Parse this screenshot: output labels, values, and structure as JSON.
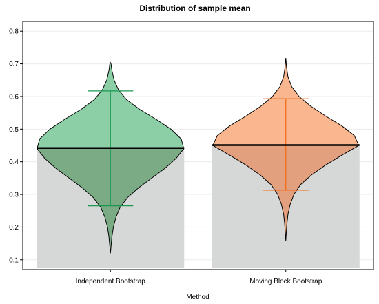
{
  "chart_data": {
    "type": "violin",
    "title": "Distribution of sample mean",
    "xlabel": "Method",
    "ylabel": "",
    "ylim": [
      0.07,
      0.83
    ],
    "yticks": [
      "0.1",
      "0.2",
      "0.3",
      "0.4",
      "0.5",
      "0.6",
      "0.7",
      "0.8"
    ],
    "grid": true,
    "categories": [
      "Independent Bootstrap",
      "Moving Block Bootstrap"
    ],
    "series": [
      {
        "category": "Independent Bootstrap",
        "mean": 0.442,
        "interval": [
          0.265,
          0.617
        ],
        "min": 0.12,
        "max": 0.704,
        "fill_color": "#8ccfa6",
        "lower_fill_color": "#7aab84",
        "line_color": "#1a9850",
        "density": [
          [
            0.12,
            0.0
          ],
          [
            0.14,
            0.008
          ],
          [
            0.17,
            0.02
          ],
          [
            0.2,
            0.04
          ],
          [
            0.23,
            0.075
          ],
          [
            0.26,
            0.13
          ],
          [
            0.29,
            0.23
          ],
          [
            0.32,
            0.38
          ],
          [
            0.35,
            0.56
          ],
          [
            0.38,
            0.74
          ],
          [
            0.41,
            0.89
          ],
          [
            0.44,
            0.995
          ],
          [
            0.47,
            0.96
          ],
          [
            0.5,
            0.82
          ],
          [
            0.53,
            0.62
          ],
          [
            0.56,
            0.4
          ],
          [
            0.59,
            0.22
          ],
          [
            0.62,
            0.11
          ],
          [
            0.65,
            0.05
          ],
          [
            0.68,
            0.02
          ],
          [
            0.7,
            0.008
          ],
          [
            0.704,
            0.0
          ]
        ]
      },
      {
        "category": "Moving Block Bootstrap",
        "mean": 0.451,
        "interval": [
          0.313,
          0.593
        ],
        "min": 0.158,
        "max": 0.718,
        "fill_color": "#f9b68f",
        "lower_fill_color": "#e3a07e",
        "line_color": "#f16913",
        "density": [
          [
            0.158,
            0.0
          ],
          [
            0.18,
            0.006
          ],
          [
            0.21,
            0.015
          ],
          [
            0.24,
            0.03
          ],
          [
            0.27,
            0.06
          ],
          [
            0.3,
            0.11
          ],
          [
            0.33,
            0.2
          ],
          [
            0.36,
            0.35
          ],
          [
            0.39,
            0.54
          ],
          [
            0.42,
            0.76
          ],
          [
            0.45,
            0.99
          ],
          [
            0.48,
            0.93
          ],
          [
            0.51,
            0.76
          ],
          [
            0.54,
            0.54
          ],
          [
            0.57,
            0.34
          ],
          [
            0.6,
            0.18
          ],
          [
            0.63,
            0.08
          ],
          [
            0.66,
            0.03
          ],
          [
            0.69,
            0.01
          ],
          [
            0.718,
            0.0
          ]
        ]
      }
    ],
    "background_color": "#d6d7d7"
  }
}
